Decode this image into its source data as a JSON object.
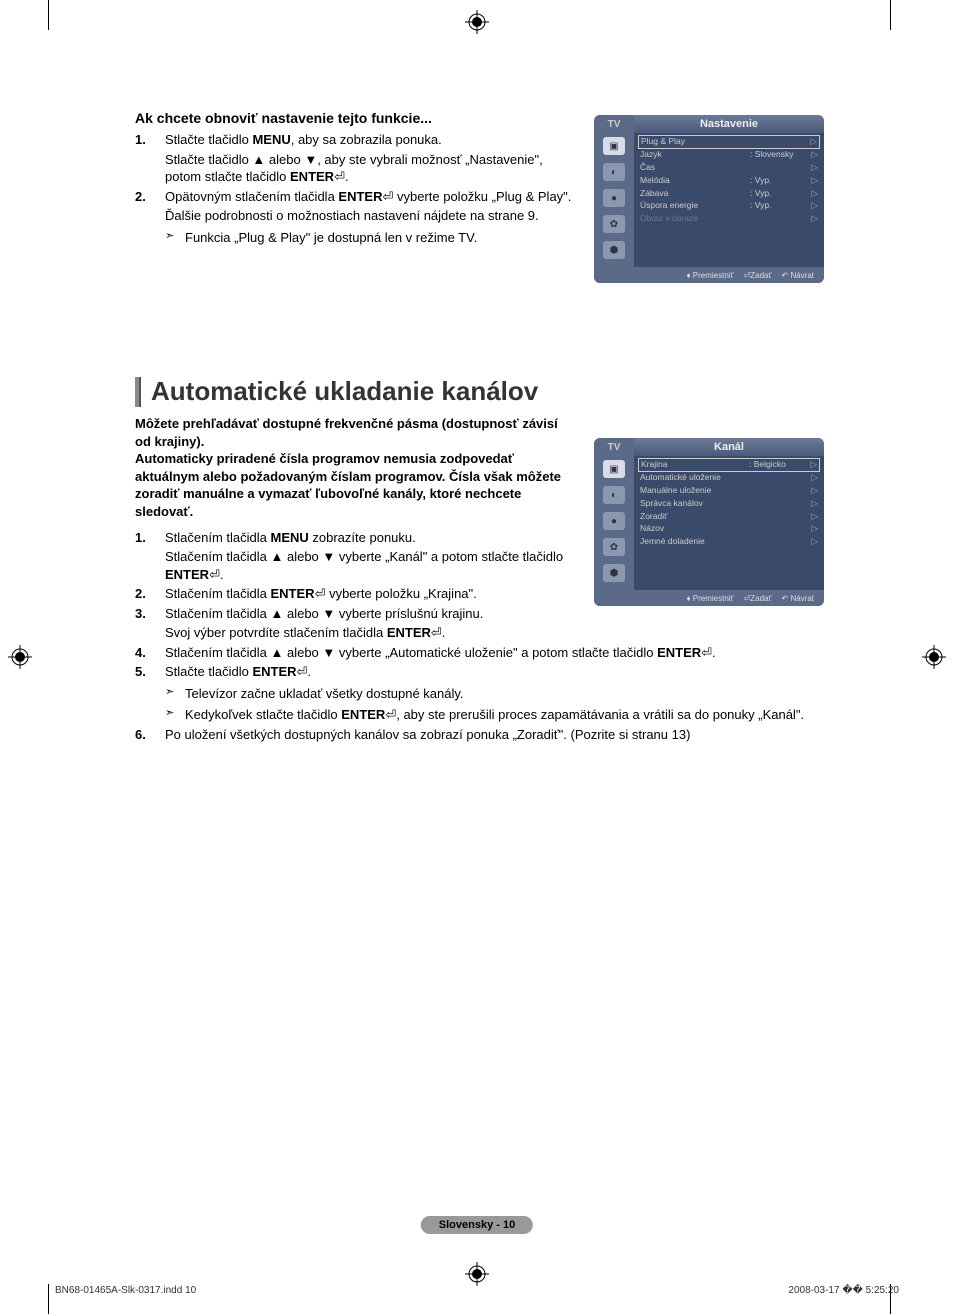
{
  "section1": {
    "title": "Ak chcete obnoviť nastavenie tejto funkcie...",
    "items": [
      {
        "num": "1.",
        "lines": [
          "Stlačte tlačidlo <b>MENU</b>, aby sa zobrazila ponuka.",
          "Stlačte tlačidlo ▲ alebo ▼, aby ste vybrali možnosť „Nastavenie\", potom stlačte tlačidlo <b>ENTER</b>⏎."
        ]
      },
      {
        "num": "2.",
        "lines": [
          "Opätovným stlačením tlačidla <b>ENTER</b>⏎ vyberte položku „Plug & Play\".",
          "Ďalšie podrobnosti o možnostiach nastavení nájdete na strane 9."
        ],
        "arrows": [
          "Funkcia „Plug & Play\" je dostupná len v režime TV."
        ]
      }
    ]
  },
  "section2": {
    "header": "Automatické ukladanie kanálov",
    "intro": "Môžete prehľadávať dostupné frekvenčné pásma (dostupnosť závisí od krajiny).\nAutomaticky priradené čísla programov nemusia zodpovedať aktuálnym alebo požadovaným číslam programov. Čísla však môžete zoradiť manuálne a vymazať ľubovoľné kanály, ktoré nechcete sledovať.",
    "items": [
      {
        "num": "1.",
        "lines": [
          "Stlačením tlačidla <b>MENU</b> zobrazíte ponuku.",
          "Stlačením tlačidla ▲ alebo ▼ vyberte „Kanál\" a potom stlačte tlačidlo <b>ENTER</b>⏎."
        ]
      },
      {
        "num": "2.",
        "lines": [
          "Stlačením tlačidla <b>ENTER</b>⏎ vyberte položku „Krajina\"."
        ]
      },
      {
        "num": "3.",
        "lines": [
          "Stlačením tlačidla ▲ alebo ▼ vyberte príslušnú krajinu.",
          "Svoj výber potvrdíte stlačením tlačidla <b>ENTER</b>⏎."
        ]
      },
      {
        "num": "4.",
        "lines": [
          "Stlačením tlačidla ▲ alebo ▼ vyberte „Automatické uloženie\" a potom stlačte tlačidlo <b>ENTER</b>⏎."
        ]
      },
      {
        "num": "5.",
        "lines": [
          "Stlačte tlačidlo <b>ENTER</b>⏎."
        ],
        "arrows": [
          "Televízor začne ukladať všetky dostupné kanály.",
          "Kedykoľvek stlačte tlačidlo <b>ENTER</b>⏎, aby ste prerušili proces zapamätávania a vrátili sa do ponuky „Kanál\"."
        ]
      },
      {
        "num": "6.",
        "lines": [
          "Po uložení všetkých dostupných kanálov sa zobrazí ponuka „Zoradiť\". (Pozrite si stranu 13)"
        ]
      }
    ]
  },
  "osd1": {
    "tv": "TV",
    "title": "Nastavenie",
    "rows": [
      {
        "label": "Plug & Play",
        "value": "",
        "hl": true
      },
      {
        "label": "Jazyk",
        "value": ": Slovensky"
      },
      {
        "label": "Čas",
        "value": ""
      },
      {
        "label": "Melódia",
        "value": ": Vyp."
      },
      {
        "label": "Zábava",
        "value": ": Vyp."
      },
      {
        "label": "Úspora energie",
        "value": ": Vyp."
      },
      {
        "label": "Obraz v obraze",
        "value": "",
        "dim": true
      }
    ],
    "footer": {
      "a": "Premiestniť",
      "b": "Zadať",
      "c": "Návrat"
    }
  },
  "osd2": {
    "tv": "TV",
    "title": "Kanál",
    "rows": [
      {
        "label": "Krajina",
        "value": ": Belgicko",
        "hl": true
      },
      {
        "label": "Automatické uloženie",
        "value": ""
      },
      {
        "label": "Manuálne uloženie",
        "value": ""
      },
      {
        "label": "Správca kanálov",
        "value": ""
      },
      {
        "label": "Zoradiť",
        "value": ""
      },
      {
        "label": "Názov",
        "value": ""
      },
      {
        "label": "Jemné doladenie",
        "value": ""
      }
    ],
    "footer": {
      "a": "Premiestniť",
      "b": "Zadať",
      "c": "Návrat"
    }
  },
  "page_footer": "Slovensky - 10",
  "print_footer": {
    "left": "BN68-01465A-Slk-0317.indd   10",
    "right": "2008-03-17   �� 5:25:20"
  },
  "icons": [
    "▣",
    "◐",
    "●",
    "✿",
    "⬢"
  ]
}
